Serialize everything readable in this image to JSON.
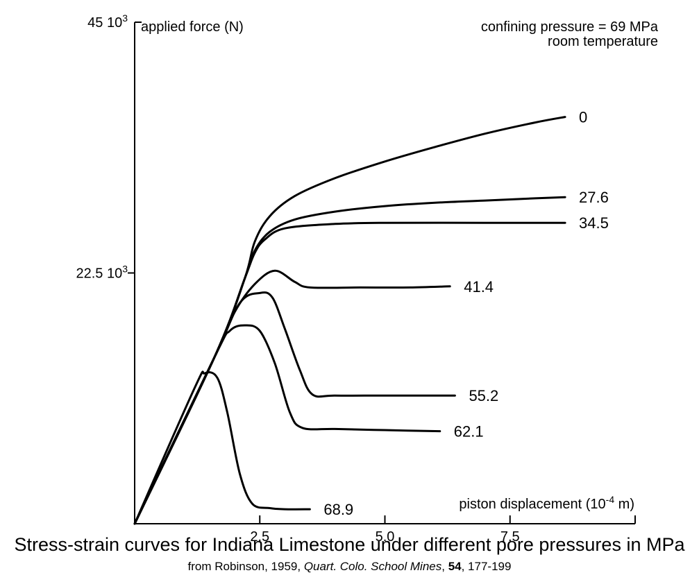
{
  "chart_data": {
    "type": "line",
    "title": "",
    "xlabel": "piston displacement (10-4 m)",
    "xlabel_base": "piston displacement (10",
    "xlabel_exp": "-4",
    "xlabel_tail": " m)",
    "ylabel": "applied force (N)",
    "xlim": [
      0,
      10
    ],
    "ylim": [
      0,
      45000
    ],
    "x_ticks": [
      2.5,
      5.0,
      7.5
    ],
    "x_tick_labels": [
      "2.5",
      "5.0",
      "7.5"
    ],
    "y_ticks": [
      {
        "value": 22500,
        "base": "22.5 10",
        "exp": "3",
        "label": "22.5 10³"
      },
      {
        "value": 45000,
        "base": "45 10",
        "exp": "3",
        "label": "45 10³"
      }
    ],
    "annotation_lines": [
      "confining pressure = 69 MPa",
      "room temperature"
    ],
    "legend": "inline labels at curve ends",
    "grid": false,
    "series": [
      {
        "name": "0",
        "points": [
          [
            0,
            0
          ],
          [
            1.6,
            15000
          ],
          [
            2.2,
            22000
          ],
          [
            2.4,
            25300
          ],
          [
            2.7,
            27600
          ],
          [
            3.2,
            29400
          ],
          [
            4,
            31000
          ],
          [
            5,
            32500
          ],
          [
            6,
            33800
          ],
          [
            7,
            35000
          ],
          [
            8,
            36000
          ],
          [
            8.6,
            36500
          ]
        ]
      },
      {
        "name": "27.6",
        "points": [
          [
            0,
            0
          ],
          [
            1.6,
            15000
          ],
          [
            2.2,
            22000
          ],
          [
            2.4,
            24500
          ],
          [
            2.7,
            26200
          ],
          [
            3.2,
            27300
          ],
          [
            4,
            28000
          ],
          [
            5,
            28500
          ],
          [
            6,
            28800
          ],
          [
            7,
            29000
          ],
          [
            8,
            29200
          ],
          [
            8.6,
            29300
          ]
        ]
      },
      {
        "name": "34.5",
        "points": [
          [
            0,
            0
          ],
          [
            1.6,
            15000
          ],
          [
            2.2,
            22000
          ],
          [
            2.4,
            24300
          ],
          [
            2.6,
            25500
          ],
          [
            3,
            26500
          ],
          [
            4,
            26900
          ],
          [
            5,
            27000
          ],
          [
            7,
            27000
          ],
          [
            8.6,
            27000
          ]
        ]
      },
      {
        "name": "41.4",
        "points": [
          [
            0,
            0
          ],
          [
            1.6,
            15000
          ],
          [
            2,
            19000
          ],
          [
            2.4,
            21500
          ],
          [
            2.8,
            22700
          ],
          [
            3.2,
            21700
          ],
          [
            3.5,
            21200
          ],
          [
            4.5,
            21200
          ],
          [
            5.5,
            21200
          ],
          [
            6.3,
            21300
          ]
        ]
      },
      {
        "name": "55.2",
        "points": [
          [
            0,
            0
          ],
          [
            1.6,
            15000
          ],
          [
            2.1,
            19800
          ],
          [
            2.5,
            20700
          ],
          [
            2.75,
            20300
          ],
          [
            3,
            17500
          ],
          [
            3.3,
            13800
          ],
          [
            3.55,
            11600
          ],
          [
            4,
            11500
          ],
          [
            5,
            11500
          ],
          [
            6.4,
            11500
          ]
        ]
      },
      {
        "name": "62.1",
        "points": [
          [
            0,
            0
          ],
          [
            1.6,
            15000
          ],
          [
            1.9,
            17300
          ],
          [
            2.2,
            17800
          ],
          [
            2.5,
            17300
          ],
          [
            2.8,
            14400
          ],
          [
            3.1,
            10000
          ],
          [
            3.35,
            8600
          ],
          [
            4,
            8500
          ],
          [
            5,
            8400
          ],
          [
            6.1,
            8300
          ]
        ]
      },
      {
        "name": "68.9",
        "points": [
          [
            0,
            0
          ],
          [
            1.2,
            12200
          ],
          [
            1.4,
            13500
          ],
          [
            1.65,
            13100
          ],
          [
            1.85,
            10000
          ],
          [
            2.1,
            4500
          ],
          [
            2.35,
            1800
          ],
          [
            2.7,
            1400
          ],
          [
            3,
            1300
          ],
          [
            3.5,
            1300
          ]
        ]
      }
    ]
  },
  "caption": {
    "main": "Stress-strain curves for Indiana Limestone under different pore pressures in MPa",
    "source_prefix": "from Robinson, 1959, ",
    "source_journal": "Quart. Colo. School Mines",
    "source_volume": "54",
    "source_suffix": ", 177-199"
  }
}
